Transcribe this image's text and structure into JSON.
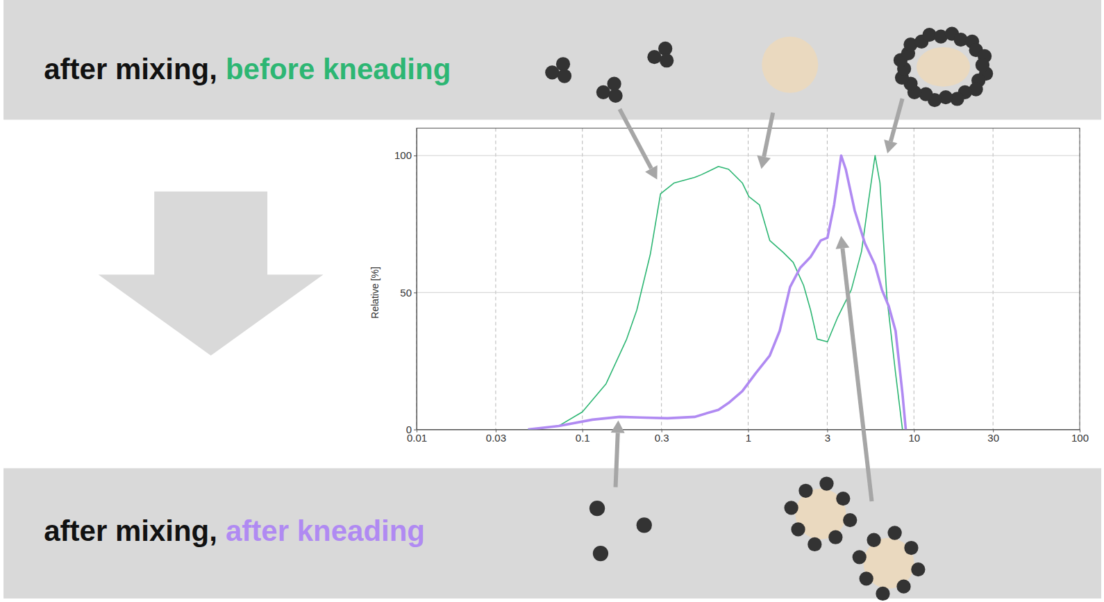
{
  "chart_data": {
    "type": "line",
    "annotations": [
      "after mixing,",
      "after mixing,"
    ],
    "ylabel": "Relative [%]",
    "log": "x",
    "grid": true,
    "xlim": [
      0.01,
      100
    ],
    "xticks": [
      0.01,
      0.03,
      0.1,
      0.3,
      1,
      3,
      10,
      30,
      100
    ],
    "ylim": [
      0,
      110
    ],
    "yticks": [
      0,
      50,
      100
    ],
    "series": [
      {
        "name": "before kneading",
        "color": "#2db673",
        "x": [
          0.047,
          0.072,
          0.1,
          0.139,
          0.185,
          0.213,
          0.257,
          0.296,
          0.358,
          0.475,
          0.522,
          0.662,
          0.762,
          0.922,
          1.01,
          1.17,
          1.35,
          1.63,
          1.87,
          2.16,
          2.38,
          2.61,
          3.01,
          3.47,
          4.19,
          4.83,
          5.31,
          5.83,
          6.24,
          6.86,
          7.75,
          8.53
        ],
        "values": [
          0,
          1.3,
          6.4,
          16.7,
          33,
          43.6,
          64,
          86,
          90,
          92,
          93,
          96,
          95,
          90,
          85,
          82,
          69,
          64.6,
          61,
          52.6,
          43.6,
          33,
          32,
          41,
          51,
          65,
          83,
          100,
          90,
          48.7,
          20.5,
          0
        ]
      },
      {
        "name": "after kneading",
        "color": "#b08af2",
        "x": [
          0.047,
          0.072,
          0.115,
          0.168,
          0.223,
          0.326,
          0.475,
          0.662,
          0.762,
          0.922,
          1.11,
          1.35,
          1.55,
          1.79,
          2.06,
          2.38,
          2.74,
          3.01,
          3.3,
          3.64,
          3.88,
          4.39,
          5.06,
          5.83,
          6.41,
          7.05,
          7.75,
          8.53,
          8.93
        ],
        "values": [
          0,
          1.3,
          3.6,
          4.6,
          4.4,
          4.1,
          4.6,
          7.2,
          9.7,
          14,
          20.5,
          27,
          36,
          52,
          59,
          63,
          69,
          70,
          82,
          100,
          95,
          80,
          68,
          60,
          51,
          45,
          36,
          13,
          0
        ]
      }
    ]
  }
}
